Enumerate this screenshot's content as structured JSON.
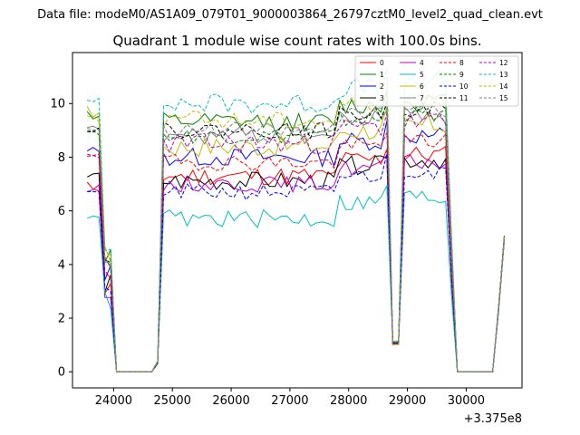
{
  "chart_data": {
    "type": "line",
    "suptitle": "Data file: modeM0/AS1A09_079T01_9000003864_26797cztM0_level2_quad_clean.evt",
    "title": "Quadrant 1 module wise count rates with 100.0s bins.",
    "xlabel": "",
    "ylabel": "",
    "x_offset_label": "+3.375e8",
    "xlim": [
      23300,
      30950
    ],
    "ylim": [
      -0.6,
      11.9
    ],
    "xticks": [
      24000,
      25000,
      26000,
      27000,
      28000,
      29000,
      30000
    ],
    "yticks": [
      0,
      2,
      4,
      6,
      8,
      10
    ],
    "legend_position": "upper-right",
    "gap1": [
      24000,
      24700
    ],
    "gap2": [
      29800,
      30500
    ],
    "x_start": 23550,
    "x_end": 30650,
    "bin_seconds": 100,
    "series": [
      {
        "name": "0",
        "color": "#ff0000",
        "dash": "solid",
        "level": 7.3,
        "pre": 6.9,
        "noise": 0.35,
        "seed": 11
      },
      {
        "name": "1",
        "color": "#008000",
        "dash": "solid",
        "level": 9.3,
        "pre": 9.6,
        "noise": 0.35,
        "seed": 12
      },
      {
        "name": "2",
        "color": "#0000ff",
        "dash": "solid",
        "level": 8.0,
        "pre": 8.2,
        "noise": 0.35,
        "seed": 13
      },
      {
        "name": "3",
        "color": "#000000",
        "dash": "solid",
        "level": 7.1,
        "pre": 7.3,
        "noise": 0.35,
        "seed": 14
      },
      {
        "name": "4",
        "color": "#bf00bf",
        "dash": "solid",
        "level": 7.0,
        "pre": 6.8,
        "noise": 0.3,
        "seed": 15
      },
      {
        "name": "5",
        "color": "#00bfbf",
        "dash": "solid",
        "level": 5.7,
        "pre": 5.9,
        "noise": 0.35,
        "seed": 16
      },
      {
        "name": "6",
        "color": "#bfbf00",
        "dash": "solid",
        "level": 8.4,
        "pre": 9.7,
        "noise": 0.4,
        "seed": 17
      },
      {
        "name": "7",
        "color": "#808080",
        "dash": "solid",
        "level": 8.8,
        "pre": 9.0,
        "noise": 0.35,
        "seed": 18
      },
      {
        "name": "8",
        "color": "#ff0000",
        "dash": "dashed",
        "level": 7.8,
        "pre": 8.0,
        "noise": 0.3,
        "seed": 19
      },
      {
        "name": "9",
        "color": "#008000",
        "dash": "dashed",
        "level": 8.8,
        "pre": 9.0,
        "noise": 0.3,
        "seed": 20
      },
      {
        "name": "10",
        "color": "#0000ff",
        "dash": "dashed",
        "level": 6.7,
        "pre": 6.8,
        "noise": 0.3,
        "seed": 21
      },
      {
        "name": "11",
        "color": "#000000",
        "dash": "dashed",
        "level": 9.0,
        "pre": 9.1,
        "noise": 0.3,
        "seed": 22
      },
      {
        "name": "12",
        "color": "#bf00bf",
        "dash": "dashed",
        "level": 8.5,
        "pre": 7.9,
        "noise": 0.4,
        "seed": 23
      },
      {
        "name": "13",
        "color": "#00bfbf",
        "dash": "dashed",
        "level": 10.0,
        "pre": 10.0,
        "noise": 0.4,
        "seed": 24
      },
      {
        "name": "14",
        "color": "#bfbf00",
        "dash": "dashed",
        "level": 9.4,
        "pre": 9.5,
        "noise": 0.35,
        "seed": 25
      },
      {
        "name": "15",
        "color": "#808080",
        "dash": "dashed",
        "level": 9.0,
        "pre": 9.1,
        "noise": 0.3,
        "seed": 26
      }
    ]
  }
}
